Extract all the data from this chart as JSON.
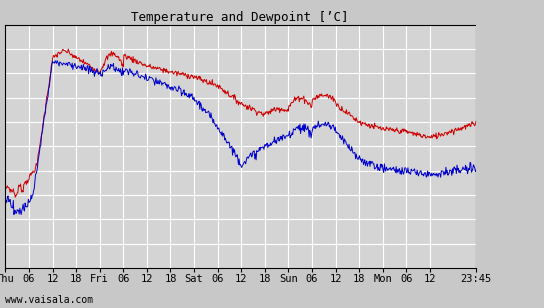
{
  "title": "Temperature and Dewpoint [’C]",
  "watermark": "www.vaisala.com",
  "ylim": [
    -12,
    8
  ],
  "yticks": [
    -12,
    -10,
    -8,
    -6,
    -4,
    -2,
    0,
    2,
    4,
    6,
    8
  ],
  "bg_color": "#c8c8c8",
  "plot_bg_color": "#d4d4d4",
  "grid_color": "#ffffff",
  "temp_color": "#cc0000",
  "dewp_color": "#0000cc",
  "line_width": 0.7,
  "x_tick_labels": [
    "Thu",
    "06",
    "12",
    "18",
    "Fri",
    "06",
    "12",
    "18",
    "Sat",
    "06",
    "12",
    "18",
    "Sun",
    "06",
    "12",
    "18",
    "Mon",
    "06",
    "12",
    "23:45"
  ],
  "x_tick_positions": [
    0,
    6,
    12,
    18,
    24,
    30,
    36,
    42,
    48,
    54,
    60,
    66,
    72,
    78,
    84,
    90,
    96,
    102,
    108,
    119.75
  ]
}
